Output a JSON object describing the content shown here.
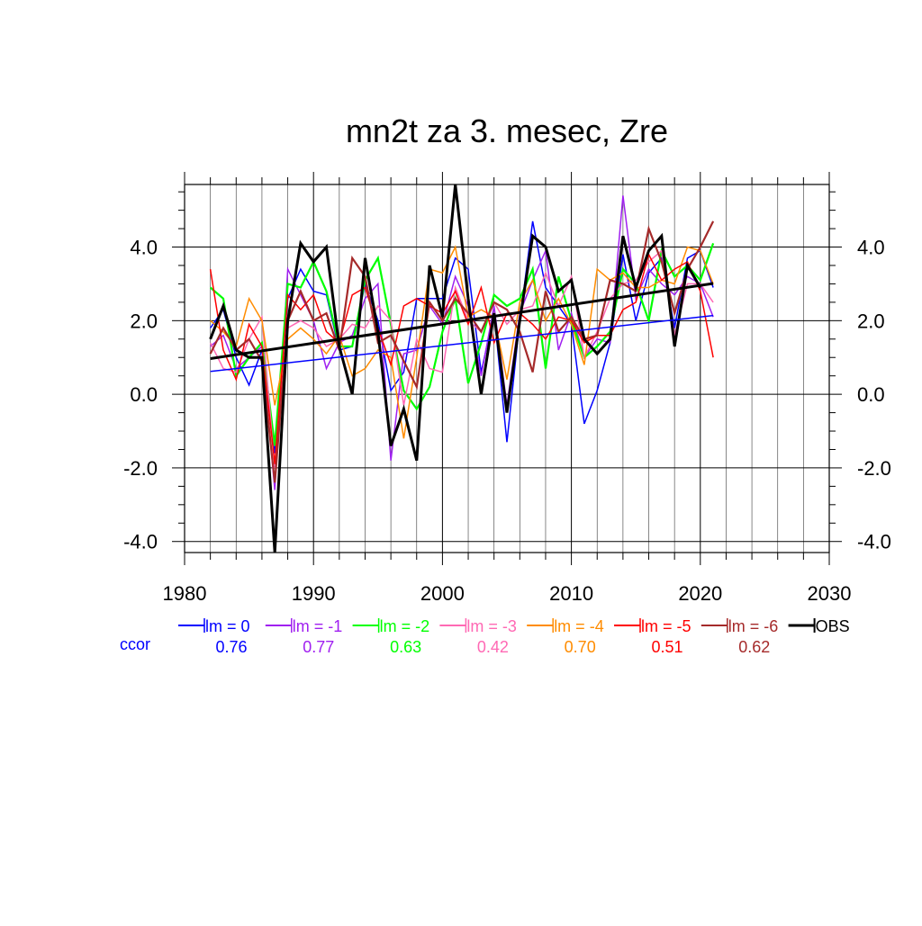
{
  "chart_data": {
    "type": "line",
    "title": "mn2t za 3. mesec, Zre",
    "xlabel": "",
    "ylabel": "",
    "xlim": [
      1980,
      2030
    ],
    "ylim": [
      -4.3,
      5.7
    ],
    "x_ticks": [
      1980,
      1990,
      2000,
      2010,
      2020,
      2030
    ],
    "x_tick_labels": [
      "1980",
      "1990",
      "2000",
      "2010",
      "2020",
      "2030"
    ],
    "y_ticks": [
      -4,
      -2,
      0,
      2,
      4
    ],
    "y_tick_labels": [
      "-4.0",
      "-2.0",
      "0.0",
      "2.0",
      "4.0"
    ],
    "grid": true,
    "legend_position": "bottom",
    "x": [
      1982,
      1983,
      1984,
      1985,
      1986,
      1987,
      1988,
      1989,
      1990,
      1991,
      1992,
      1993,
      1994,
      1995,
      1996,
      1997,
      1998,
      1999,
      2000,
      2001,
      2002,
      2003,
      2004,
      2005,
      2006,
      2007,
      2008,
      2009,
      2010,
      2011,
      2012,
      2013,
      2014,
      2015,
      2016,
      2017,
      2018,
      2019,
      2020,
      2021
    ],
    "series": [
      {
        "name": "lm = 0",
        "color": "#0000ff",
        "width": 1.5,
        "values": [
          1.8,
          2.3,
          1.0,
          0.25,
          1.2,
          -1.6,
          2.6,
          3.4,
          2.8,
          2.7,
          1.2,
          1.3,
          3.0,
          2.0,
          0.1,
          0.6,
          2.6,
          2.6,
          2.6,
          3.7,
          3.4,
          0.6,
          2.2,
          -1.3,
          2.0,
          4.7,
          2.9,
          2.4,
          1.9,
          -0.8,
          0.1,
          1.4,
          3.8,
          2.0,
          3.3,
          3.7,
          1.8,
          3.7,
          3.9,
          2.9
        ],
        "trend": [
          0.62,
          2.14
        ]
      },
      {
        "name": "lm = -1",
        "color": "#a020f0",
        "width": 1.5,
        "values": [
          1.3,
          1.6,
          0.7,
          1.0,
          1.3,
          -2.6,
          3.4,
          2.7,
          2.0,
          0.7,
          1.4,
          1.6,
          2.6,
          3.0,
          -1.8,
          1.1,
          1.2,
          2.4,
          1.9,
          3.2,
          2.4,
          0.5,
          2.4,
          -0.3,
          2.2,
          3.1,
          3.9,
          1.2,
          2.2,
          1.0,
          1.5,
          1.4,
          5.4,
          2.6,
          3.4,
          3.0,
          2.7,
          3.2,
          3.0,
          2.1
        ],
        "trend": null
      },
      {
        "name": "lm = -2",
        "color": "#00ff00",
        "width": 2.2,
        "values": [
          2.9,
          2.6,
          0.5,
          1.0,
          1.4,
          -1.4,
          3.0,
          2.9,
          3.6,
          2.8,
          1.3,
          1.3,
          3.1,
          3.7,
          1.9,
          0.1,
          -0.4,
          0.2,
          1.7,
          2.6,
          0.3,
          1.4,
          2.7,
          2.4,
          2.6,
          3.4,
          0.7,
          3.2,
          2.0,
          1.0,
          1.3,
          1.7,
          3.4,
          3.0,
          2.0,
          3.9,
          3.2,
          3.5,
          3.1,
          4.1
        ],
        "trend": null
      },
      {
        "name": "lm = -3",
        "color": "#ff69b4",
        "width": 1.5,
        "values": [
          1.4,
          0.7,
          0.6,
          1.5,
          2.1,
          -2.0,
          1.8,
          2.0,
          1.8,
          1.3,
          1.5,
          1.9,
          1.8,
          2.4,
          2.0,
          -0.3,
          1.5,
          0.7,
          0.6,
          2.9,
          2.0,
          1.7,
          2.5,
          1.9,
          2.3,
          2.4,
          3.3,
          2.4,
          3.2,
          1.0,
          1.7,
          2.6,
          3.0,
          3.1,
          3.6,
          3.9,
          1.6,
          3.0,
          3.0,
          2.5
        ],
        "trend": null
      },
      {
        "name": "lm = -4",
        "color": "#ff8c00",
        "width": 1.5,
        "values": [
          2.0,
          1.7,
          1.3,
          2.6,
          2.0,
          -0.3,
          1.5,
          1.8,
          1.5,
          1.1,
          1.6,
          0.5,
          0.7,
          1.2,
          1.0,
          -1.2,
          1.0,
          3.4,
          3.3,
          4.0,
          2.1,
          2.3,
          2.1,
          0.4,
          2.5,
          3.1,
          2.0,
          2.6,
          1.9,
          0.8,
          3.4,
          3.1,
          3.3,
          2.9,
          2.9,
          3.1,
          3.0,
          4.0,
          3.9,
          3.0
        ],
        "trend": null
      },
      {
        "name": "lm = -5",
        "color": "#ff0000",
        "width": 1.5,
        "values": [
          3.4,
          1.2,
          0.4,
          1.9,
          1.3,
          -1.9,
          2.7,
          2.3,
          2.7,
          1.7,
          1.4,
          2.7,
          2.9,
          1.8,
          0.8,
          2.4,
          2.6,
          2.4,
          2.2,
          2.8,
          1.9,
          2.9,
          1.4,
          2.2,
          2.2,
          1.9,
          1.5,
          2.1,
          2.0,
          1.4,
          1.6,
          1.6,
          2.3,
          2.5,
          3.8,
          3.1,
          3.4,
          3.6,
          2.8,
          1.0
        ],
        "trend": null
      },
      {
        "name": "lm = -6",
        "color": "#a52a2a",
        "width": 2.2,
        "values": [
          1.1,
          1.8,
          1.2,
          1.5,
          0.9,
          -2.4,
          2.0,
          2.8,
          2.0,
          2.2,
          1.2,
          3.7,
          3.2,
          1.4,
          1.6,
          0.9,
          0.2,
          2.5,
          2.0,
          2.6,
          2.2,
          1.7,
          2.5,
          2.3,
          1.7,
          0.6,
          2.8,
          1.7,
          2.1,
          1.5,
          1.6,
          3.1,
          3.0,
          2.8,
          4.5,
          3.6,
          2.2,
          3.4,
          4.0,
          4.7
        ],
        "trend": null
      },
      {
        "name": "OBS",
        "color": "#000000",
        "width": 3,
        "values": [
          1.5,
          2.4,
          1.2,
          1.0,
          1.0,
          -4.3,
          2.0,
          4.1,
          3.6,
          4.0,
          1.3,
          0.0,
          3.7,
          1.7,
          -1.4,
          -0.4,
          -1.8,
          3.5,
          2.1,
          5.7,
          2.6,
          0.0,
          2.2,
          -0.5,
          2.0,
          4.3,
          4.0,
          2.8,
          3.1,
          1.5,
          1.1,
          1.5,
          4.3,
          2.9,
          3.9,
          4.3,
          1.3,
          3.5,
          2.9,
          null
        ],
        "trend": [
          0.97,
          3.01
        ]
      }
    ],
    "legend": [
      {
        "label": "lm = 0",
        "color": "#0000ff"
      },
      {
        "label": "lm = -1",
        "color": "#a020f0"
      },
      {
        "label": "lm = -2",
        "color": "#00ff00"
      },
      {
        "label": "lm = -3",
        "color": "#ff69b4"
      },
      {
        "label": "lm = -4",
        "color": "#ff8c00"
      },
      {
        "label": "lm = -5",
        "color": "#ff0000"
      },
      {
        "label": "lm = -6",
        "color": "#a52a2a"
      },
      {
        "label": "OBS",
        "color": "#000000"
      }
    ],
    "ccor_label": "ccor",
    "ccor_label_color": "#0000ff",
    "ccor": [
      {
        "value": "0.76",
        "color": "#0000ff"
      },
      {
        "value": "0.77",
        "color": "#a020f0"
      },
      {
        "value": "0.63",
        "color": "#00ff00"
      },
      {
        "value": "0.42",
        "color": "#ff69b4"
      },
      {
        "value": "0.70",
        "color": "#ff8c00"
      },
      {
        "value": "0.51",
        "color": "#ff0000"
      },
      {
        "value": "0.62",
        "color": "#a52a2a"
      }
    ]
  }
}
